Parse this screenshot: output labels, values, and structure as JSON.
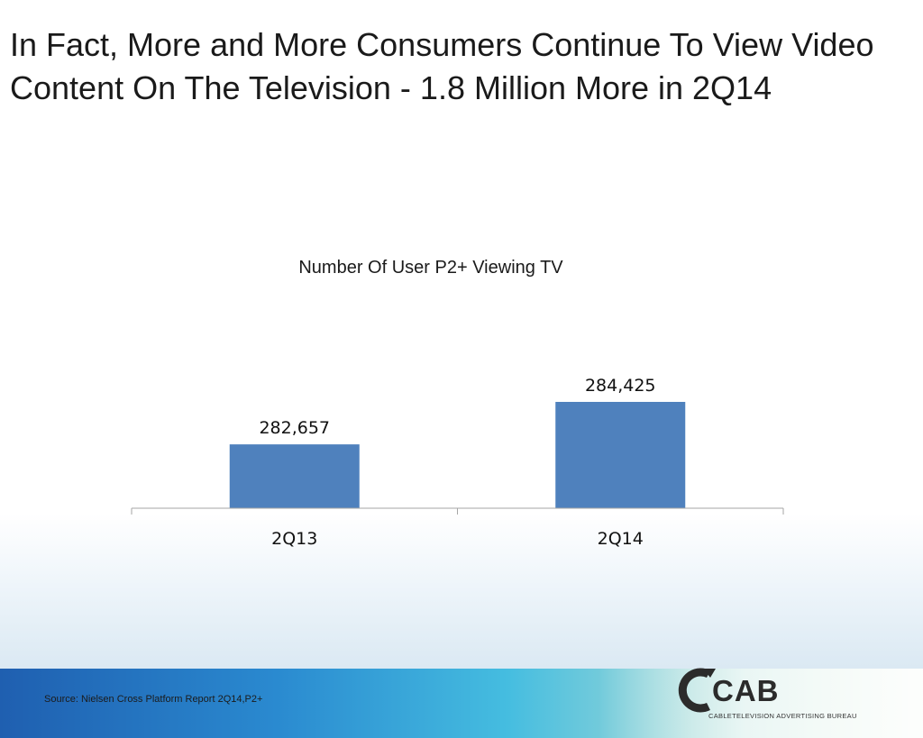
{
  "slide": {
    "title": "In Fact, More and More Consumers Continue To View Video Content On The Television - 1.8 Million More in 2Q14"
  },
  "chart_data": {
    "type": "bar",
    "title": "Number Of User P2+ Viewing TV",
    "categories": [
      "2Q13",
      "2Q14"
    ],
    "values": [
      282657,
      284425
    ],
    "data_labels": [
      "282,657",
      "284,425"
    ],
    "bar_color": "#4f81bd",
    "xlabel": "",
    "ylabel": "",
    "ylim": [
      280000,
      286000
    ],
    "grid": false,
    "legend": "none"
  },
  "footer": {
    "source": "Source: Nielsen Cross Platform Report 2Q14,P2+"
  },
  "logo": {
    "name": "CAB",
    "subtitle": "CABLETELEVISION ADVERTISING BUREAU",
    "icon": "cab-logo-icon"
  },
  "colors": {
    "bar": "#4f81bd",
    "footer_start": "#1f5fb0",
    "footer_end": "#cfe9cf"
  }
}
